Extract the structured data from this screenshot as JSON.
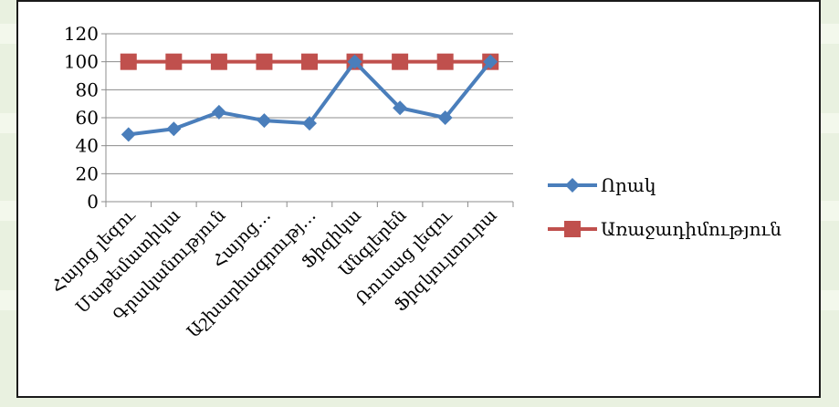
{
  "colors": {
    "background": "#e9f1e0",
    "plot_background": "#ffffff",
    "grid": "#8c8c8c",
    "series_1": "#4a7ebb",
    "series_2": "#c0504d"
  },
  "chart_data": {
    "type": "line",
    "title": "",
    "xlabel": "",
    "ylabel": "",
    "ylim": [
      0,
      120
    ],
    "yticks": [
      "0",
      "20",
      "40",
      "60",
      "80",
      "100",
      "120"
    ],
    "grid": true,
    "legend_position": "right",
    "categories": [
      "Հայոց լեզու",
      "Մաթեմատիկա",
      "Գրականություն",
      "Հայոց…",
      "Աշխարհագրությ…",
      "Ֆիզիկա",
      "Անգլերեն",
      "Ռուսաց լեզու",
      "Ֆիզկուլտուրա"
    ],
    "series": [
      {
        "name": "Որակ",
        "marker": "diamond",
        "values": [
          48,
          52,
          64,
          58,
          56,
          100,
          67,
          60,
          100
        ]
      },
      {
        "name": "Առաջադիմություն",
        "marker": "square",
        "values": [
          100,
          100,
          100,
          100,
          100,
          100,
          100,
          100,
          100
        ]
      }
    ]
  }
}
